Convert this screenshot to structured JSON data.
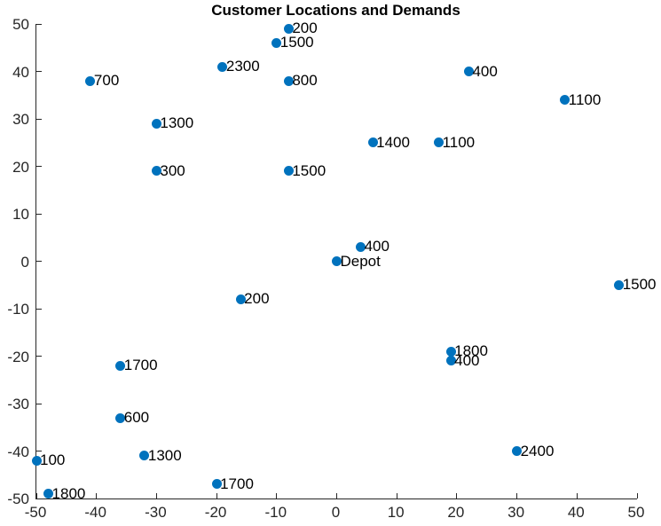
{
  "chart_data": {
    "type": "scatter",
    "title": "Customer Locations and Demands",
    "xlabel": "",
    "ylabel": "",
    "xlim": [
      -50,
      50
    ],
    "ylim": [
      -50,
      50
    ],
    "xticks": [
      -50,
      -40,
      -30,
      -20,
      -10,
      0,
      10,
      20,
      30,
      40,
      50
    ],
    "yticks": [
      -50,
      -40,
      -30,
      -20,
      -10,
      0,
      10,
      20,
      30,
      40,
      50
    ],
    "grid": false,
    "legend": "none",
    "marker_color": "#0072BD",
    "axis_color": "#262626",
    "text_color": "#000000",
    "points": [
      {
        "x": -8,
        "y": 49,
        "label": "200"
      },
      {
        "x": -10,
        "y": 46,
        "label": "1500"
      },
      {
        "x": -19,
        "y": 41,
        "label": "2300"
      },
      {
        "x": -41,
        "y": 38,
        "label": "700"
      },
      {
        "x": -8,
        "y": 38,
        "label": "800"
      },
      {
        "x": 22,
        "y": 40,
        "label": "400"
      },
      {
        "x": 38,
        "y": 34,
        "label": "1100"
      },
      {
        "x": -30,
        "y": 29,
        "label": "1300"
      },
      {
        "x": 6,
        "y": 25,
        "label": "1400"
      },
      {
        "x": 17,
        "y": 25,
        "label": "1100"
      },
      {
        "x": -30,
        "y": 19,
        "label": "300"
      },
      {
        "x": -8,
        "y": 19,
        "label": "1500"
      },
      {
        "x": 4,
        "y": 3,
        "label": "400"
      },
      {
        "x": 0,
        "y": 0,
        "label": "Depot"
      },
      {
        "x": 47,
        "y": -5,
        "label": "1500"
      },
      {
        "x": -16,
        "y": -8,
        "label": "200"
      },
      {
        "x": 19,
        "y": -19,
        "label": "1800"
      },
      {
        "x": 19,
        "y": -21,
        "label": "400"
      },
      {
        "x": -36,
        "y": -22,
        "label": "1700"
      },
      {
        "x": -36,
        "y": -33,
        "label": "600"
      },
      {
        "x": -50,
        "y": -42,
        "label": "100"
      },
      {
        "x": -32,
        "y": -41,
        "label": "1300"
      },
      {
        "x": 30,
        "y": -40,
        "label": "2400"
      },
      {
        "x": -48,
        "y": -49,
        "label": "1800"
      },
      {
        "x": -20,
        "y": -47,
        "label": "1700"
      }
    ]
  }
}
